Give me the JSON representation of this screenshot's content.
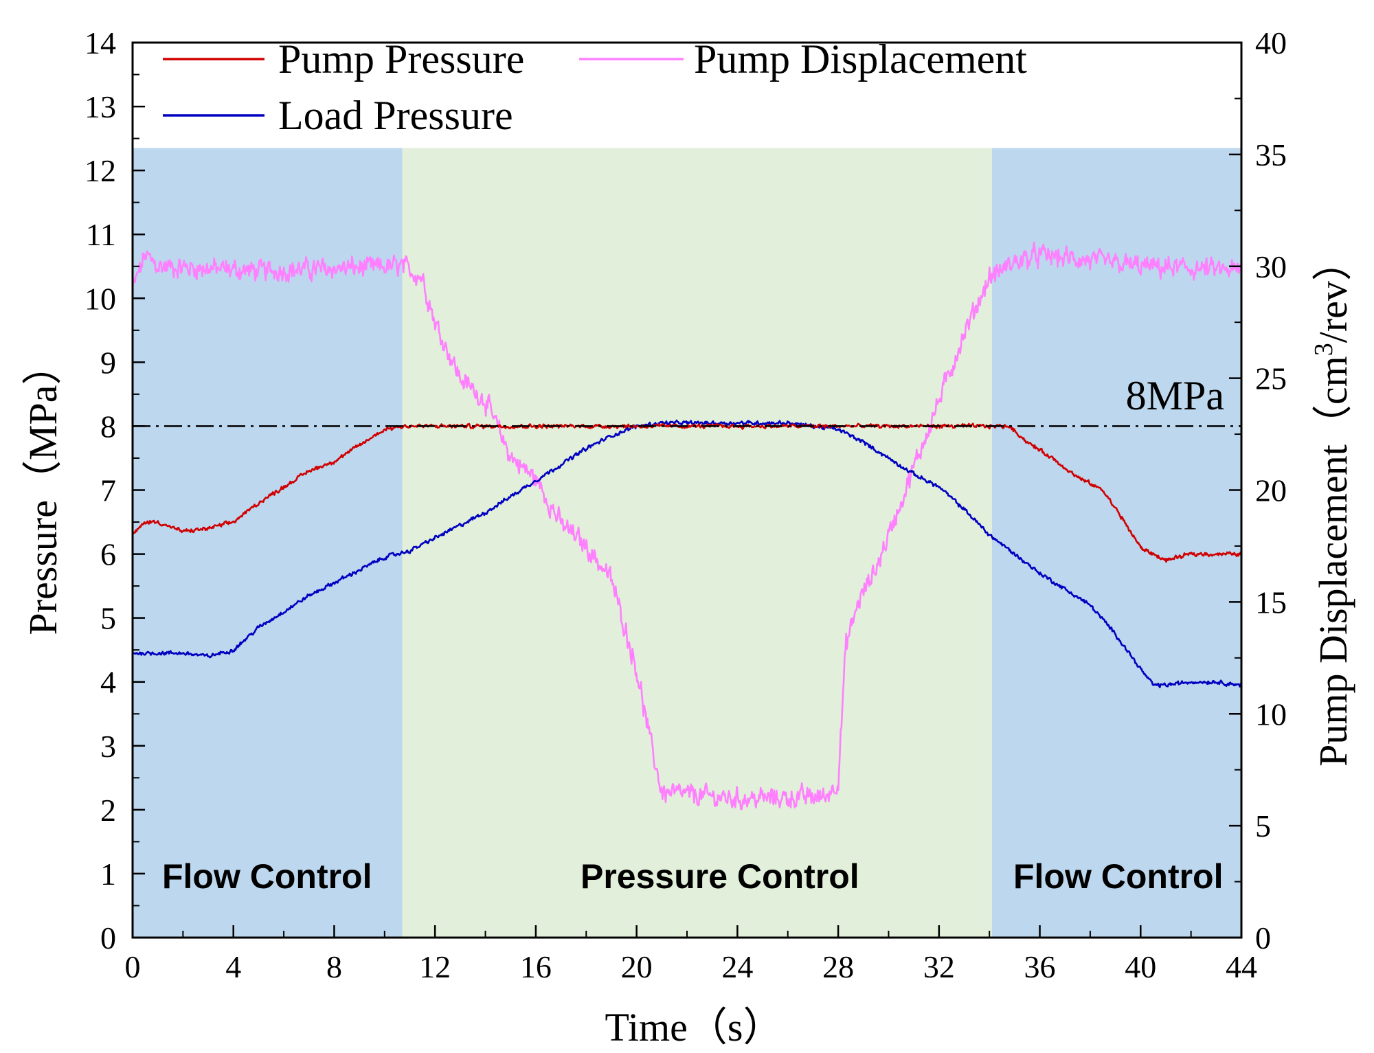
{
  "chart_data": {
    "type": "line",
    "xlabel": "Time（s）",
    "ylabel_left": "Pressure（MPa）",
    "ylabel_right_main": "Pump Displacement（cm",
    "ylabel_right_sup": "3",
    "ylabel_right_tail": "/rev）",
    "xlim": [
      0,
      44
    ],
    "ylim_left": [
      0,
      14
    ],
    "ylim_right": [
      0,
      40
    ],
    "x_ticks": [
      0,
      4,
      8,
      12,
      16,
      20,
      24,
      28,
      32,
      36,
      40,
      44
    ],
    "y_left_ticks": [
      0,
      1,
      2,
      3,
      4,
      5,
      6,
      7,
      8,
      9,
      10,
      11,
      12,
      13,
      14
    ],
    "y_right_ticks": [
      0,
      5,
      10,
      15,
      20,
      25,
      30,
      35,
      40
    ],
    "grid": false,
    "legend_position": "top-left",
    "regions": [
      {
        "label": "Flow Control",
        "x_start": 0,
        "x_end": 10.7,
        "y_top": 12.35,
        "color": "#bdd7ee"
      },
      {
        "label": "Pressure Control",
        "x_start": 10.7,
        "x_end": 34.1,
        "y_top": 12.35,
        "color": "#e2efda"
      },
      {
        "label": "Flow Control",
        "x_start": 34.1,
        "x_end": 44,
        "y_top": 12.35,
        "color": "#bdd7ee"
      }
    ],
    "reference_line": {
      "y": 8,
      "label": "8MPa",
      "style": "dash-dot"
    },
    "series": [
      {
        "name": "Pump Pressure",
        "axis": "left",
        "color": "#d00000",
        "noise": 0.04,
        "points": [
          [
            0,
            6.3
          ],
          [
            0.5,
            6.5
          ],
          [
            1,
            6.5
          ],
          [
            2,
            6.35
          ],
          [
            3,
            6.4
          ],
          [
            4,
            6.5
          ],
          [
            5,
            6.8
          ],
          [
            6,
            7.05
          ],
          [
            7,
            7.3
          ],
          [
            8,
            7.45
          ],
          [
            9,
            7.7
          ],
          [
            10,
            7.95
          ],
          [
            10.7,
            8.0
          ],
          [
            12,
            8.0
          ],
          [
            20,
            8.0
          ],
          [
            28,
            8.0
          ],
          [
            34.8,
            8.0
          ],
          [
            35.5,
            7.75
          ],
          [
            36.5,
            7.5
          ],
          [
            37.5,
            7.2
          ],
          [
            38.5,
            7.0
          ],
          [
            39.2,
            6.6
          ],
          [
            40,
            6.1
          ],
          [
            41,
            5.9
          ],
          [
            42,
            6.0
          ],
          [
            43,
            6.0
          ],
          [
            44,
            6.0
          ]
        ]
      },
      {
        "name": "Load Pressure",
        "axis": "left",
        "color": "#0000c0",
        "noise": 0.04,
        "points": [
          [
            0,
            4.45
          ],
          [
            1,
            4.45
          ],
          [
            2,
            4.45
          ],
          [
            3,
            4.4
          ],
          [
            4,
            4.5
          ],
          [
            5,
            4.85
          ],
          [
            6,
            5.1
          ],
          [
            7,
            5.35
          ],
          [
            8,
            5.55
          ],
          [
            9,
            5.75
          ],
          [
            10,
            5.95
          ],
          [
            11,
            6.05
          ],
          [
            12,
            6.25
          ],
          [
            13,
            6.45
          ],
          [
            14,
            6.65
          ],
          [
            15,
            6.9
          ],
          [
            16,
            7.15
          ],
          [
            17,
            7.4
          ],
          [
            18,
            7.65
          ],
          [
            19,
            7.85
          ],
          [
            20,
            8.0
          ],
          [
            21,
            8.05
          ],
          [
            22,
            8.05
          ],
          [
            24,
            8.05
          ],
          [
            26,
            8.05
          ],
          [
            27,
            8.0
          ],
          [
            28,
            7.95
          ],
          [
            29,
            7.75
          ],
          [
            30,
            7.5
          ],
          [
            31,
            7.25
          ],
          [
            32,
            7.05
          ],
          [
            33,
            6.7
          ],
          [
            34,
            6.3
          ],
          [
            35,
            6.0
          ],
          [
            36,
            5.7
          ],
          [
            37,
            5.45
          ],
          [
            38,
            5.2
          ],
          [
            39,
            4.75
          ],
          [
            40,
            4.2
          ],
          [
            40.5,
            3.95
          ],
          [
            41,
            3.95
          ],
          [
            42,
            4.0
          ],
          [
            43,
            4.0
          ],
          [
            44,
            3.95
          ]
        ]
      },
      {
        "name": "Pump Displacement",
        "axis": "right",
        "color": "#ff80ff",
        "noise": 0.6,
        "points": [
          [
            0,
            29
          ],
          [
            0.5,
            30.5
          ],
          [
            1,
            30
          ],
          [
            5,
            29.8
          ],
          [
            10.7,
            30
          ],
          [
            11.5,
            29.5
          ],
          [
            12,
            27.5
          ],
          [
            13,
            25
          ],
          [
            14,
            24
          ],
          [
            15,
            21.5
          ],
          [
            16,
            20.5
          ],
          [
            17,
            18.5
          ],
          [
            18,
            17.5
          ],
          [
            19,
            16
          ],
          [
            19.5,
            14
          ],
          [
            20,
            12
          ],
          [
            20.5,
            9
          ],
          [
            21,
            6.5
          ],
          [
            24,
            6.2
          ],
          [
            27.5,
            6.3
          ],
          [
            28,
            7
          ],
          [
            28.3,
            13
          ],
          [
            28.8,
            15
          ],
          [
            29.5,
            16.5
          ],
          [
            30,
            18
          ],
          [
            31,
            21
          ],
          [
            32,
            24
          ],
          [
            33,
            27
          ],
          [
            34,
            29.5
          ],
          [
            35,
            30.2
          ],
          [
            36,
            30.5
          ],
          [
            40,
            30
          ],
          [
            44,
            29.8
          ]
        ]
      }
    ]
  }
}
